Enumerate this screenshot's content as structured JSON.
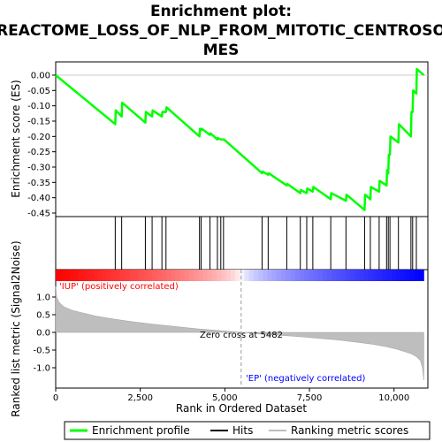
{
  "chart_data": {
    "type": "line",
    "title_lines": [
      "Enrichment plot:",
      "REACTOME_LOSS_OF_NLP_FROM_MITOTIC_CENTROSO",
      "MES"
    ],
    "xlabel": "Rank in Ordered Dataset",
    "ylabel_top": "Enrichment score (ES)",
    "ylabel_bottom": "Ranked list metric (Signal2Noise)",
    "xlim": [
      0,
      11000
    ],
    "x_ticks": [
      0,
      2500,
      5000,
      7500,
      10000
    ],
    "x_tick_labels": [
      "0",
      "2,500",
      "5,000",
      "7,500",
      "10,000"
    ],
    "es_ylim": [
      -0.45,
      0.0
    ],
    "es_ticks": [
      0.0,
      -0.05,
      -0.1,
      -0.15,
      -0.2,
      -0.25,
      -0.3,
      -0.35,
      -0.4,
      -0.45
    ],
    "es_tick_labels": [
      "0.00",
      "-0.05",
      "-0.10",
      "-0.15",
      "-0.20",
      "-0.25",
      "-0.30",
      "-0.35",
      "-0.40",
      "-0.45"
    ],
    "metric_ticks": [
      1.0,
      0.5,
      0.0,
      -0.5,
      -1.0
    ],
    "metric_tick_labels": [
      "1.0",
      "0.5",
      "0.0",
      "-0.5",
      "-1.0"
    ],
    "enrichment_profile": {
      "name": "Enrichment profile",
      "color": "#00ff00",
      "x": [
        0,
        1760,
        1775,
        1950,
        1965,
        2650,
        2665,
        2850,
        2865,
        3140,
        3155,
        3260,
        3275,
        4250,
        4265,
        4300,
        4315,
        4560,
        4575,
        4780,
        4795,
        4880,
        4895,
        4960,
        4975,
        6100,
        6115,
        6280,
        6295,
        6830,
        6845,
        7230,
        7245,
        7420,
        7435,
        7600,
        7615,
        8130,
        8145,
        8580,
        8595,
        9130,
        9145,
        9300,
        9315,
        9560,
        9575,
        9780,
        9795,
        9830,
        9845,
        9880,
        9895,
        10130,
        10145,
        10500,
        10515,
        10550,
        10565,
        10660,
        10675,
        10880
      ],
      "y": [
        0.0,
        -0.16,
        -0.115,
        -0.135,
        -0.09,
        -0.155,
        -0.12,
        -0.135,
        -0.115,
        -0.135,
        -0.12,
        -0.12,
        -0.105,
        -0.2,
        -0.175,
        -0.18,
        -0.175,
        -0.195,
        -0.19,
        -0.21,
        -0.205,
        -0.21,
        -0.21,
        -0.21,
        -0.21,
        -0.32,
        -0.315,
        -0.325,
        -0.32,
        -0.36,
        -0.355,
        -0.385,
        -0.375,
        -0.385,
        -0.37,
        -0.38,
        -0.365,
        -0.405,
        -0.385,
        -0.41,
        -0.39,
        -0.44,
        -0.39,
        -0.405,
        -0.365,
        -0.38,
        -0.345,
        -0.36,
        -0.31,
        -0.32,
        -0.26,
        -0.26,
        -0.2,
        -0.22,
        -0.16,
        -0.2,
        -0.12,
        -0.12,
        -0.05,
        -0.06,
        0.02,
        0.0
      ]
    },
    "hits": {
      "name": "Hits",
      "x": [
        1760,
        1950,
        2650,
        2850,
        3140,
        3260,
        4250,
        4300,
        4560,
        4780,
        4880,
        4960,
        6100,
        6280,
        6830,
        7230,
        7420,
        7600,
        8130,
        8580,
        9130,
        9300,
        9560,
        9780,
        9830,
        9880,
        10130,
        10500,
        10550,
        10660
      ]
    },
    "ranking_metric": {
      "name": "Ranking metric scores",
      "x": [
        0,
        30,
        100,
        250,
        500,
        800,
        1200,
        1700,
        2200,
        2800,
        3500,
        4200,
        5000,
        5482,
        6000,
        6600,
        7200,
        7800,
        8400,
        9000,
        9400,
        9800,
        10100,
        10300,
        10500,
        10650,
        10780,
        10840,
        10880
      ],
      "y": [
        1.3,
        1.0,
        0.85,
        0.72,
        0.62,
        0.55,
        0.46,
        0.38,
        0.31,
        0.24,
        0.17,
        0.1,
        0.04,
        0.0,
        -0.04,
        -0.08,
        -0.12,
        -0.17,
        -0.22,
        -0.29,
        -0.34,
        -0.41,
        -0.48,
        -0.54,
        -0.6,
        -0.68,
        -0.8,
        -1.0,
        -1.35
      ],
      "zero_cross_rank": 5482
    },
    "annotations": {
      "positive": "'IUP' (positively correlated)",
      "negative": "'EP' (negatively correlated)",
      "zero_cross": "Zero cross at 5482"
    },
    "legend": {
      "placement": "bottom",
      "entries": [
        "Enrichment profile",
        "Hits",
        "Ranking metric scores"
      ]
    },
    "colors": {
      "profile": "#00ff00",
      "hits": "#000000",
      "metric_fill": "#bebebe",
      "positive": "#ff0000",
      "negative": "#0000ff",
      "annotation_positive": "#ff0000",
      "annotation_negative": "#0000ff"
    }
  }
}
